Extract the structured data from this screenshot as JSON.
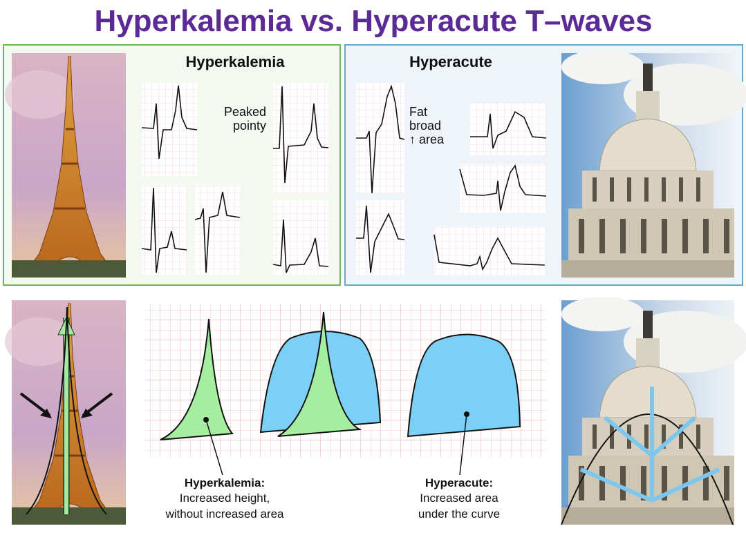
{
  "title": "Hyperkalemia vs. Hyperacute T–waves",
  "panels": [
    {
      "heading": "Hyperkalemia",
      "note": [
        "Peaked",
        "pointy"
      ]
    },
    {
      "heading": "Hyperacute",
      "note": [
        "Fat",
        "broad",
        "↑ area"
      ]
    }
  ],
  "captions": [
    {
      "title": "Hyperkalemia:",
      "lines": [
        "Increased height,",
        "without increased area"
      ]
    },
    {
      "title": "Hyperacute:",
      "lines": [
        "Increased area",
        "under the curve"
      ]
    }
  ]
}
